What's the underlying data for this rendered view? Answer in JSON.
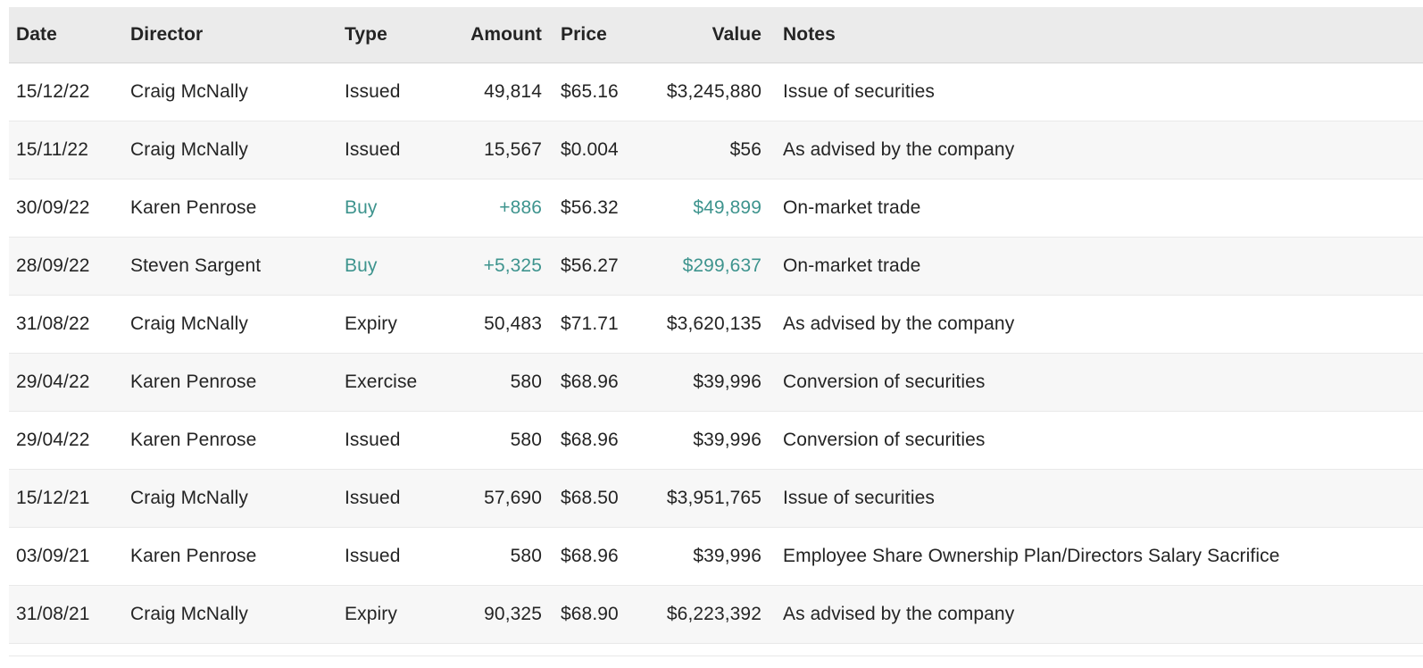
{
  "table": {
    "columns": [
      {
        "key": "date",
        "label": "Date",
        "align": "left"
      },
      {
        "key": "director",
        "label": "Director",
        "align": "left"
      },
      {
        "key": "type",
        "label": "Type",
        "align": "left"
      },
      {
        "key": "amount",
        "label": "Amount",
        "align": "right"
      },
      {
        "key": "price",
        "label": "Price",
        "align": "left"
      },
      {
        "key": "value",
        "label": "Value",
        "align": "right"
      },
      {
        "key": "notes",
        "label": "Notes",
        "align": "left"
      }
    ],
    "rows": [
      {
        "date": "15/12/22",
        "director": "Craig McNally",
        "type": "Issued",
        "amount": "49,814",
        "price": "$65.16",
        "value": "$3,245,880",
        "notes": "Issue of securities",
        "highlight": false
      },
      {
        "date": "15/11/22",
        "director": "Craig McNally",
        "type": "Issued",
        "amount": "15,567",
        "price": "$0.004",
        "value": "$56",
        "notes": "As advised by the company",
        "highlight": false
      },
      {
        "date": "30/09/22",
        "director": "Karen Penrose",
        "type": "Buy",
        "amount": "+886",
        "price": "$56.32",
        "value": "$49,899",
        "notes": "On-market trade",
        "highlight": true
      },
      {
        "date": "28/09/22",
        "director": "Steven Sargent",
        "type": "Buy",
        "amount": "+5,325",
        "price": "$56.27",
        "value": "$299,637",
        "notes": "On-market trade",
        "highlight": true
      },
      {
        "date": "31/08/22",
        "director": "Craig McNally",
        "type": "Expiry",
        "amount": "50,483",
        "price": "$71.71",
        "value": "$3,620,135",
        "notes": "As advised by the company",
        "highlight": false
      },
      {
        "date": "29/04/22",
        "director": "Karen Penrose",
        "type": "Exercise",
        "amount": "580",
        "price": "$68.96",
        "value": "$39,996",
        "notes": "Conversion of securities",
        "highlight": false
      },
      {
        "date": "29/04/22",
        "director": "Karen Penrose",
        "type": "Issued",
        "amount": "580",
        "price": "$68.96",
        "value": "$39,996",
        "notes": "Conversion of securities",
        "highlight": false
      },
      {
        "date": "15/12/21",
        "director": "Craig McNally",
        "type": "Issued",
        "amount": "57,690",
        "price": "$68.50",
        "value": "$3,951,765",
        "notes": "Issue of securities",
        "highlight": false
      },
      {
        "date": "03/09/21",
        "director": "Karen Penrose",
        "type": "Issued",
        "amount": "580",
        "price": "$68.96",
        "value": "$39,996",
        "notes": "Employee Share Ownership Plan/Directors Salary Sacrifice",
        "highlight": false
      },
      {
        "date": "31/08/21",
        "director": "Craig McNally",
        "type": "Expiry",
        "amount": "90,325",
        "price": "$68.90",
        "value": "$6,223,392",
        "notes": "As advised by the company",
        "highlight": false
      }
    ]
  },
  "colors": {
    "buy_accent": "#3e948e",
    "header_bg": "#ebebeb",
    "stripe_bg": "#f7f7f7",
    "text": "#242424",
    "row_border": "#e9e9e9",
    "header_border": "#d5d5d5"
  }
}
